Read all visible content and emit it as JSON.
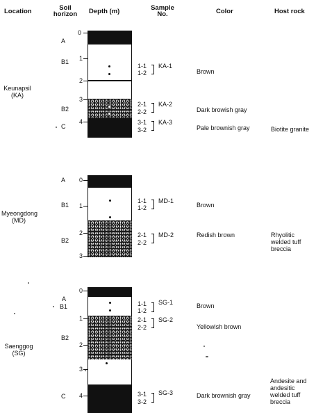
{
  "headers": {
    "location": "Location",
    "soil_horizon": [
      "Soil",
      "horizon"
    ],
    "depth": "Depth (m)",
    "sample_no": [
      "Sample",
      "No."
    ],
    "color": "Color",
    "host_rock": "Host rock"
  },
  "profiles": [
    {
      "location": [
        "Keunapsil",
        "(KA)"
      ],
      "horizons": [
        "A",
        "B1",
        "B2",
        "C"
      ],
      "depth_ticks": [
        "0",
        "1",
        "2",
        "3",
        "4"
      ],
      "samples": [
        {
          "labels": [
            "1-1",
            "1-2"
          ],
          "group": "KA-1",
          "color": "Brown"
        },
        {
          "labels": [
            "2-1",
            "2-2"
          ],
          "group": "KA-2",
          "color": "Dark browish gray"
        },
        {
          "labels": [
            "3-1",
            "3-2"
          ],
          "group": "KA-3",
          "color": "Pale brownish gray"
        }
      ],
      "host_rock": [
        "Biotite granite"
      ]
    },
    {
      "location": [
        "Myeongdong",
        "(MD)"
      ],
      "horizons": [
        "A",
        "B1",
        "B2"
      ],
      "depth_ticks": [
        "0",
        "1",
        "2",
        "3"
      ],
      "samples": [
        {
          "labels": [
            "1-1",
            "1-2"
          ],
          "group": "MD-1",
          "color": "Brown"
        },
        {
          "labels": [
            "2-1",
            "2-2"
          ],
          "group": "MD-2",
          "color": "Redish brown"
        }
      ],
      "host_rock": [
        "Rhyolitic",
        "welded tuff",
        "breccia"
      ]
    },
    {
      "location": [
        "Saenggog",
        "(SG)"
      ],
      "horizons": [
        "A",
        "B1",
        "B2",
        "C"
      ],
      "depth_ticks": [
        "0",
        "1",
        "2",
        "3",
        "4"
      ],
      "samples": [
        {
          "labels": [
            "1-1",
            "1-2"
          ],
          "group": "SG-1",
          "color": "Brown"
        },
        {
          "labels": [
            "2-1",
            "2-2"
          ],
          "group": "SG-2",
          "color": "Yellowish brown"
        },
        {
          "labels": [
            "3-1",
            "3-2"
          ],
          "group": "SG-3",
          "color": "Dark brownish gray"
        }
      ],
      "host_rock": [
        "Andesite and",
        "andesitic",
        "welded tuff",
        "breccia"
      ]
    }
  ]
}
